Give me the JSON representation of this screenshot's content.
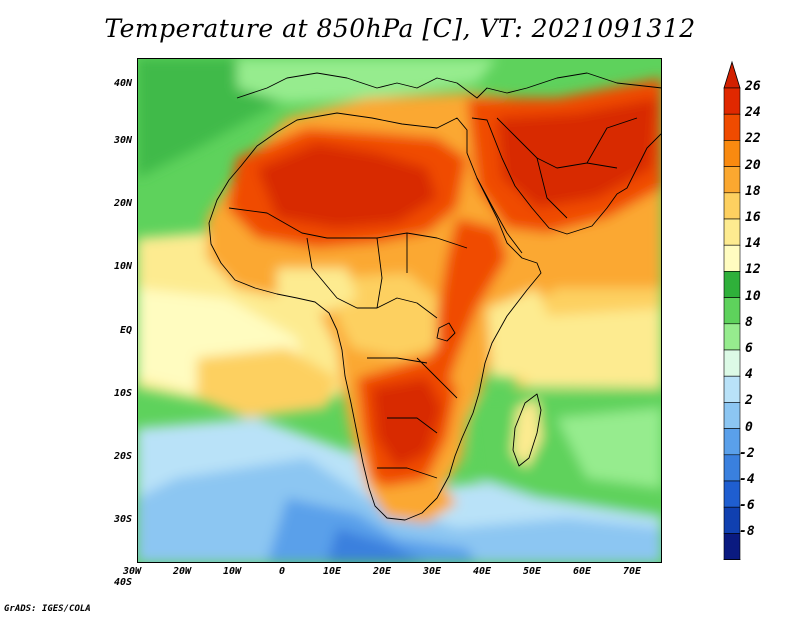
{
  "title": "Temperature at 850hPa [C], VT: 2021091312",
  "credit": "GrADS: IGES/COLA",
  "lat_labels": [
    "40N",
    "30N",
    "20N",
    "10N",
    "EQ",
    "10S",
    "20S",
    "30S",
    "40S"
  ],
  "lon_labels": [
    "30W",
    "20W",
    "10W",
    "0",
    "10E",
    "20E",
    "30E",
    "40E",
    "50E",
    "60E",
    "70E"
  ],
  "colorbar": {
    "labels": [
      "26",
      "24",
      "22",
      "20",
      "18",
      "16",
      "14",
      "12",
      "10",
      "8",
      "6",
      "4",
      "2",
      "0",
      "-2",
      "-4",
      "-6",
      "-8"
    ],
    "colors": [
      "#e02800",
      "#f04b00",
      "#f98a10",
      "#fba830",
      "#fdd060",
      "#fdeb90",
      "#fffcc0",
      "#2fb03a",
      "#5ed25c",
      "#96ec8e",
      "#dcfae6",
      "#b9e2f8",
      "#8cc6f2",
      "#5aa0ea",
      "#3a80de",
      "#1f5ed0",
      "#1040b0",
      "#0a1a80"
    ],
    "top_arrow_color": "#d22000",
    "bottom_arrow_color": "#e6e6ff"
  },
  "map_colors": {
    "ocean": "#66c066",
    "ocean_warm": "#9ce28e",
    "temperate": "#fdeb90",
    "warm": "#fba830",
    "hot": "#f04b00",
    "very_hot": "#d82a00",
    "cold_ocean": "#8cc6f2",
    "colder_ocean": "#5aa0ea",
    "pale": "#fffcc0"
  }
}
